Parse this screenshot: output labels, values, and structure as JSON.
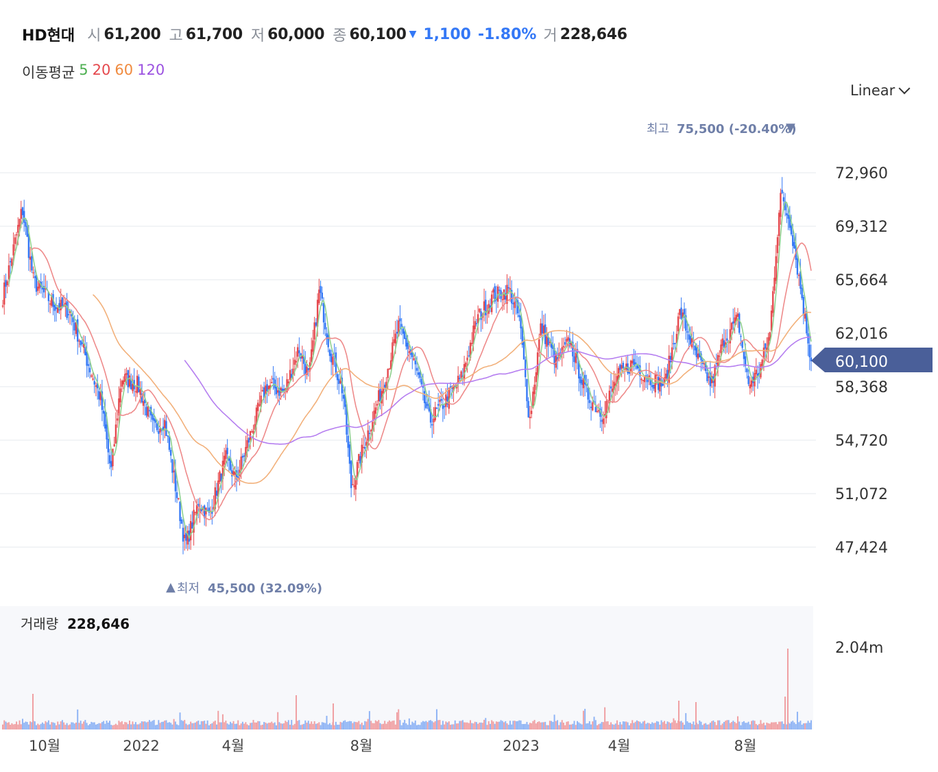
{
  "header": {
    "name": "HD현대",
    "open_label": "시",
    "open": "61,200",
    "high_label": "고",
    "high": "61,700",
    "low_label": "저",
    "low": "60,000",
    "close_label": "종",
    "close": "60,100",
    "change": "1,100",
    "change_pct": "-1.80%",
    "volume_label": "거",
    "volume": "228,646"
  },
  "moving_average": {
    "label": "이동평균",
    "periods": [
      {
        "label": "5",
        "color": "#4caf50"
      },
      {
        "label": "20",
        "color": "#e5484d"
      },
      {
        "label": "60",
        "color": "#f08a3e"
      },
      {
        "label": "120",
        "color": "#9b51e0"
      }
    ]
  },
  "scale_select": {
    "value": "Linear"
  },
  "colors": {
    "up": "#e5484d",
    "down": "#3478f6",
    "badge": "#4a5f99",
    "annotation": "#6f7fa8"
  },
  "chart_data": {
    "type": "candlestick",
    "y_ticks": [
      "72,960",
      "69,312",
      "65,664",
      "62,016",
      "58,368",
      "54,720",
      "51,072",
      "47,424"
    ],
    "y_tick_values": [
      72960,
      69312,
      65664,
      62016,
      58368,
      54720,
      51072,
      47424
    ],
    "x_ticks": [
      "10월",
      "2022",
      "4월",
      "8월",
      "2023",
      "4월",
      "8월"
    ],
    "current_price": "60,100",
    "high_annotation": {
      "label": "최고",
      "value": "75,500 (-20.40%)"
    },
    "low_annotation": {
      "label": "최저",
      "value": "45,500 (32.09%)"
    },
    "close_path": [
      [
        "2021-09-01",
        64500
      ],
      [
        "2021-09-20",
        70500
      ],
      [
        "2021-10-01",
        65500
      ],
      [
        "2021-10-20",
        64000
      ],
      [
        "2021-11-05",
        63500
      ],
      [
        "2021-11-20",
        60500
      ],
      [
        "2021-12-05",
        57500
      ],
      [
        "2021-12-15",
        52500
      ],
      [
        "2021-12-25",
        59000
      ],
      [
        "2022-01-10",
        58500
      ],
      [
        "2022-01-25",
        55500
      ],
      [
        "2022-02-05",
        56000
      ],
      [
        "2022-02-25",
        47500
      ],
      [
        "2022-03-10",
        50500
      ],
      [
        "2022-03-20",
        49500
      ],
      [
        "2022-04-05",
        53500
      ],
      [
        "2022-04-15",
        52000
      ],
      [
        "2022-05-01",
        55500
      ],
      [
        "2022-05-15",
        58500
      ],
      [
        "2022-06-01",
        58000
      ],
      [
        "2022-06-15",
        61000
      ],
      [
        "2022-06-25",
        59000
      ],
      [
        "2022-07-05",
        65000
      ],
      [
        "2022-07-15",
        61000
      ],
      [
        "2022-07-28",
        58000
      ],
      [
        "2022-08-05",
        51500
      ],
      [
        "2022-08-20",
        55000
      ],
      [
        "2022-09-05",
        58500
      ],
      [
        "2022-09-20",
        62500
      ],
      [
        "2022-10-05",
        60000
      ],
      [
        "2022-10-20",
        56000
      ],
      [
        "2022-11-05",
        57500
      ],
      [
        "2022-11-20",
        59000
      ],
      [
        "2022-12-05",
        63000
      ],
      [
        "2022-12-20",
        64500
      ],
      [
        "2023-01-05",
        65000
      ],
      [
        "2023-01-15",
        63000
      ],
      [
        "2023-01-25",
        56000
      ],
      [
        "2023-02-05",
        62500
      ],
      [
        "2023-02-20",
        60000
      ],
      [
        "2023-03-05",
        61500
      ],
      [
        "2023-03-20",
        58000
      ],
      [
        "2023-04-05",
        56500
      ],
      [
        "2023-04-20",
        59000
      ],
      [
        "2023-05-05",
        60000
      ],
      [
        "2023-05-20",
        59000
      ],
      [
        "2023-06-05",
        58500
      ],
      [
        "2023-06-20",
        63500
      ],
      [
        "2023-07-05",
        60500
      ],
      [
        "2023-07-20",
        58500
      ],
      [
        "2023-08-01",
        61500
      ],
      [
        "2023-08-15",
        63000
      ],
      [
        "2023-08-25",
        58500
      ],
      [
        "2023-09-05",
        59500
      ],
      [
        "2023-09-15",
        62000
      ],
      [
        "2023-09-25",
        71500
      ],
      [
        "2023-10-05",
        69500
      ],
      [
        "2023-10-15",
        65000
      ],
      [
        "2023-10-25",
        60100
      ]
    ],
    "volume": {
      "label": "거래량",
      "value": "228,646",
      "max_tick": "2.04m"
    }
  }
}
